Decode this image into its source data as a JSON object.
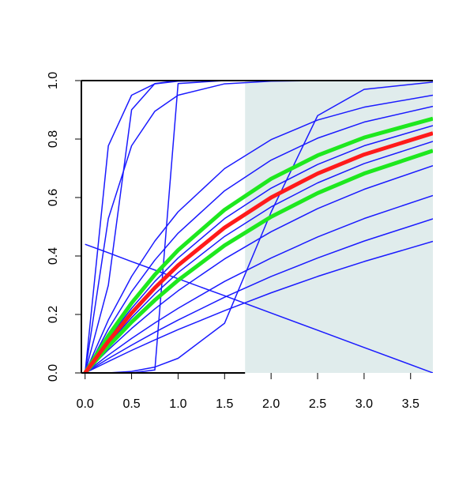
{
  "chart_data": {
    "type": "line",
    "x": [
      0,
      0.25,
      0.5,
      0.75,
      1,
      1.5,
      2,
      2.5,
      3,
      3.74
    ],
    "xlim": [
      -0.04,
      3.74
    ],
    "ylim": [
      0,
      1
    ],
    "xticks": [
      {
        "value": 0,
        "label": "0.0"
      },
      {
        "value": 0.5,
        "label": "0.5"
      },
      {
        "value": 1,
        "label": "1.0"
      },
      {
        "value": 1.5,
        "label": "1.5"
      },
      {
        "value": 2,
        "label": "2.0"
      },
      {
        "value": 2.5,
        "label": "2.5"
      },
      {
        "value": 3,
        "label": "3.0"
      },
      {
        "value": 3.5,
        "label": "3.5"
      }
    ],
    "yticks": [
      {
        "value": 0,
        "label": "0.0"
      },
      {
        "value": 0.2,
        "label": "0.2"
      },
      {
        "value": 0.4,
        "label": "0.4"
      },
      {
        "value": 0.6,
        "label": "0.6"
      },
      {
        "value": 0.8,
        "label": "0.8"
      },
      {
        "value": 1,
        "label": "1.0"
      }
    ],
    "shaded_x": [
      1.72,
      3.74
    ],
    "shade_color": "#e0ecec",
    "series": [
      {
        "color": "#1a1aff",
        "width": 1.5,
        "values": [
          0,
          0.181,
          0.33,
          0.451,
          0.551,
          0.699,
          0.798,
          0.865,
          0.909,
          0.95
        ]
      },
      {
        "color": "#1a1aff",
        "width": 1.5,
        "values": [
          0,
          0.15,
          0.278,
          0.386,
          0.478,
          0.623,
          0.728,
          0.803,
          0.858,
          0.912
        ]
      },
      {
        "color": "#1a1aff",
        "width": 1.5,
        "values": [
          0,
          0.118,
          0.221,
          0.313,
          0.393,
          0.528,
          0.632,
          0.713,
          0.777,
          0.846
        ]
      },
      {
        "color": "#1a1aff",
        "width": 1.5,
        "values": [
          0,
          0.1,
          0.189,
          0.27,
          0.343,
          0.467,
          0.568,
          0.65,
          0.716,
          0.792
        ]
      },
      {
        "color": "#1a1aff",
        "width": 1.5,
        "values": [
          0,
          0.079,
          0.152,
          0.219,
          0.281,
          0.39,
          0.483,
          0.562,
          0.628,
          0.709
        ]
      },
      {
        "color": "#1a1aff",
        "width": 1.5,
        "values": [
          0,
          0.061,
          0.118,
          0.171,
          0.221,
          0.313,
          0.393,
          0.465,
          0.528,
          0.607
        ]
      },
      {
        "color": "#1a1aff",
        "width": 1.5,
        "values": [
          0,
          0.049,
          0.095,
          0.139,
          0.181,
          0.259,
          0.33,
          0.393,
          0.451,
          0.527
        ]
      },
      {
        "color": "#1a1aff",
        "width": 1.5,
        "values": [
          0,
          0.039,
          0.077,
          0.113,
          0.148,
          0.213,
          0.274,
          0.33,
          0.381,
          0.45
        ]
      },
      {
        "color": "#1a1aff",
        "width": 1.5,
        "values": [
          0,
          0.777,
          0.95,
          0.989,
          0.998,
          1,
          1,
          1,
          1,
          1
        ]
      },
      {
        "color": "#1a1aff",
        "width": 1.5,
        "values": [
          0,
          0.528,
          0.777,
          0.895,
          0.95,
          0.989,
          0.998,
          1,
          1,
          1
        ]
      },
      {
        "color": "#1a1aff",
        "width": 1.5,
        "values": [
          0,
          0.3,
          0.9,
          0.99,
          1,
          1,
          1,
          1,
          1,
          1
        ]
      },
      {
        "color": "#1a1aff",
        "width": 1.5,
        "values": [
          0,
          0,
          0,
          0.01,
          0.99,
          1,
          1,
          1,
          1,
          1
        ]
      },
      {
        "color": "#1a1aff",
        "width": 1.5,
        "values": [
          0,
          0,
          0.005,
          0.02,
          0.05,
          0.17,
          0.55,
          0.88,
          0.97,
          0.995
        ]
      },
      {
        "color": "#1a1aff",
        "width": 1.5,
        "values": [
          0.44,
          0.411,
          0.381,
          0.352,
          0.322,
          0.264,
          0.205,
          0.146,
          0.087,
          0
        ]
      },
      {
        "color": "#1ee81e",
        "width": 5,
        "values": [
          0,
          0.127,
          0.239,
          0.336,
          0.42,
          0.558,
          0.664,
          0.744,
          0.805,
          0.87
        ]
      },
      {
        "color": "#1ee81e",
        "width": 5,
        "values": [
          0,
          0.091,
          0.174,
          0.249,
          0.317,
          0.436,
          0.534,
          0.615,
          0.682,
          0.76
        ]
      },
      {
        "color": "#ff1a1a",
        "width": 5,
        "values": [
          0,
          0.108,
          0.205,
          0.291,
          0.368,
          0.497,
          0.6,
          0.682,
          0.747,
          0.82
        ]
      }
    ]
  }
}
